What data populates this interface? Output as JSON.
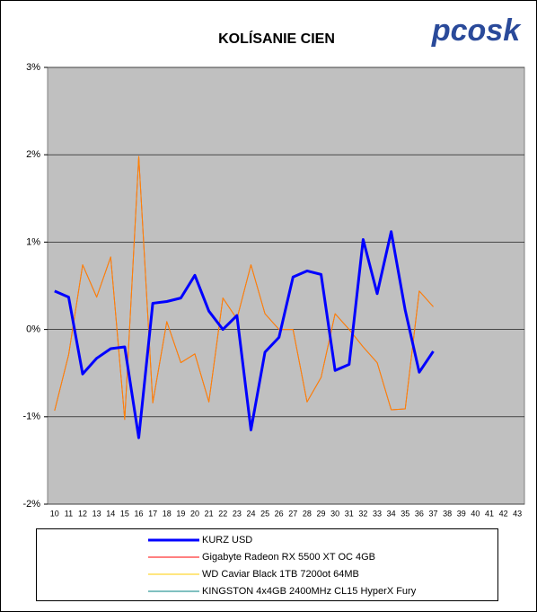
{
  "logo": "pcosk",
  "chart_data": {
    "type": "line",
    "title": "KOLÍSANIE CIEN",
    "categories": [
      "10",
      "11",
      "12",
      "13",
      "14",
      "15",
      "16",
      "17",
      "18",
      "19",
      "20",
      "21",
      "22",
      "23",
      "24",
      "25",
      "26",
      "27",
      "28",
      "29",
      "30",
      "31",
      "32",
      "33",
      "34",
      "35",
      "36",
      "37",
      "38",
      "39",
      "40",
      "41",
      "42",
      "43"
    ],
    "series": [
      {
        "name": "KURZ USD",
        "color": "#0000ff",
        "values": [
          0.44,
          0.37,
          -0.51,
          -0.33,
          -0.22,
          -0.2,
          -1.24,
          0.3,
          0.32,
          0.36,
          0.62,
          0.21,
          0.0,
          0.16,
          -1.15,
          -0.26,
          -0.09,
          0.6,
          0.67,
          0.63,
          -0.47,
          -0.4,
          1.03,
          0.41,
          1.12,
          0.22,
          -0.49,
          -0.25,
          null,
          null,
          null,
          null,
          null,
          null
        ]
      },
      {
        "name": "Gigabyte Radeon RX 5500 XT OC 4GB",
        "color": "#ff0000",
        "values": [
          -0.93,
          -0.29,
          0.74,
          0.37,
          0.83,
          -1.03,
          1.98,
          -0.84,
          0.09,
          -0.38,
          -0.28,
          -0.83,
          0.36,
          0.12,
          0.74,
          0.18,
          0.0,
          0.0,
          -0.83,
          -0.55,
          0.18,
          0.0,
          -0.2,
          -0.38,
          -0.92,
          -0.91,
          0.44,
          0.26,
          null,
          null,
          null,
          null,
          null,
          null
        ]
      },
      {
        "name": "WD Caviar Black 1TB 7200ot 64MB",
        "color": "#ffcc00",
        "values": [
          -0.93,
          -0.29,
          0.74,
          0.37,
          0.83,
          -1.03,
          1.98,
          -0.84,
          0.09,
          -0.38,
          -0.28,
          -0.83,
          0.36,
          0.12,
          0.74,
          0.18,
          0.0,
          0.0,
          -0.83,
          -0.55,
          0.18,
          0.0,
          -0.2,
          -0.38,
          -0.92,
          -0.91,
          0.44,
          0.26,
          null,
          null,
          null,
          null,
          null,
          null
        ]
      },
      {
        "name": "KINGSTON 4x4GB 2400MHz CL15 HyperX Fury",
        "color": "#008080",
        "values": [
          null,
          null,
          null,
          null,
          null,
          null,
          null,
          null,
          null,
          null,
          null,
          null,
          null,
          null,
          null,
          null,
          null,
          null,
          null,
          null,
          null,
          null,
          null,
          null,
          null,
          null,
          null,
          null,
          null,
          null,
          null,
          null,
          null,
          null
        ]
      }
    ],
    "ylim": [
      -2,
      3
    ],
    "yticks": [
      {
        "value": -2,
        "label": "-2%"
      },
      {
        "value": -1,
        "label": "-1%"
      },
      {
        "value": 0,
        "label": "0%"
      },
      {
        "value": 1,
        "label": "1%"
      },
      {
        "value": 2,
        "label": "2%"
      },
      {
        "value": 3,
        "label": "3%"
      }
    ],
    "grid": true
  }
}
